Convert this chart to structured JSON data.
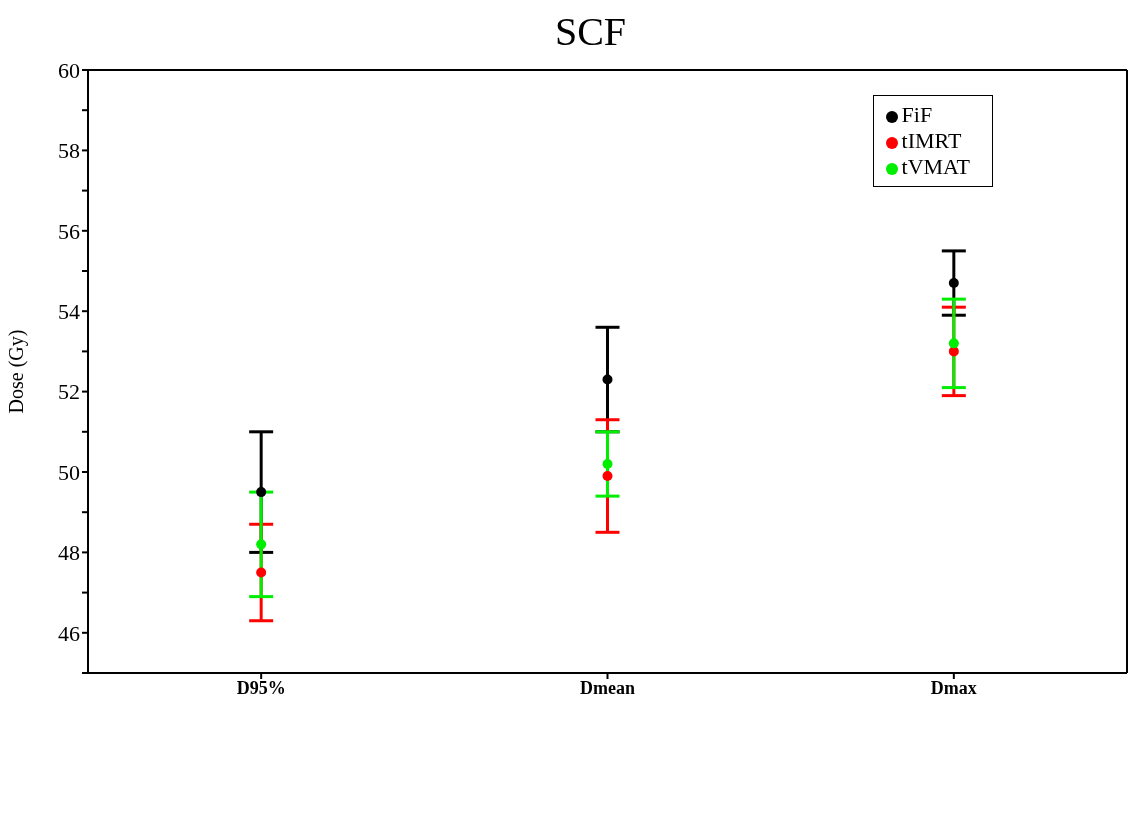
{
  "chart_data": {
    "type": "scatter",
    "title": "SCF",
    "ylabel": "Dose (Gy)",
    "categories": [
      "D95%",
      "Dmean",
      "Dmax"
    ],
    "series": [
      {
        "name": "FiF",
        "color": "#000000",
        "values": [
          49.5,
          52.3,
          54.7
        ],
        "errors": [
          [
            48.0,
            51.0
          ],
          [
            51.0,
            53.6
          ],
          [
            53.9,
            55.5
          ]
        ]
      },
      {
        "name": "tIMRT",
        "color": "#ff0000",
        "values": [
          47.5,
          49.9,
          53.0
        ],
        "errors": [
          [
            46.3,
            48.7
          ],
          [
            48.5,
            51.3
          ],
          [
            51.9,
            54.1
          ]
        ]
      },
      {
        "name": "tVMAT",
        "color": "#00ee00",
        "values": [
          48.2,
          50.2,
          53.2
        ],
        "errors": [
          [
            46.9,
            49.5
          ],
          [
            49.4,
            51.0
          ],
          [
            52.1,
            54.3
          ]
        ]
      }
    ],
    "ylim": [
      45,
      60
    ],
    "yticks": [
      {
        "value": 45,
        "label": null
      },
      46,
      {
        "value": 47,
        "label": null
      },
      48,
      {
        "value": 49,
        "label": null
      },
      50,
      {
        "value": 51,
        "label": null
      },
      52,
      {
        "value": 53,
        "label": null
      },
      54,
      {
        "value": 55,
        "label": null
      },
      56,
      {
        "value": 57,
        "label": null
      },
      58,
      {
        "value": 59,
        "label": null
      },
      60
    ],
    "legend": "top right",
    "marker": "circle"
  }
}
